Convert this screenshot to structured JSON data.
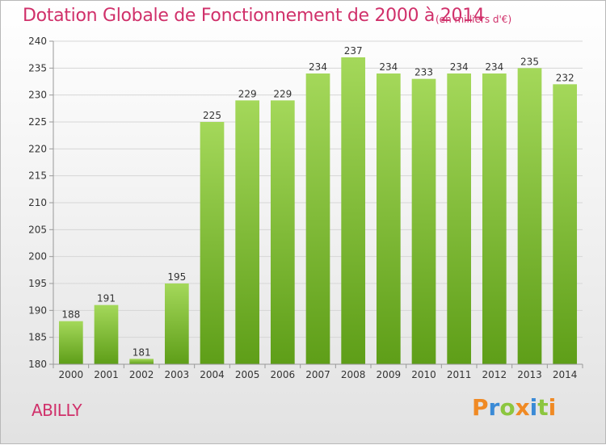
{
  "title": "Dotation Globale de Fonctionnement de 2000 à 2014",
  "unit": "(en milliers d'€)",
  "commune": "ABILLY",
  "logo": {
    "letters": [
      "P",
      "r",
      "o",
      "x",
      "i",
      "t",
      "i"
    ],
    "colors": [
      "#f08a24",
      "#3a8ad6",
      "#8cc63f",
      "#f08a24",
      "#3a8ad6",
      "#8cc63f",
      "#f08a24"
    ]
  },
  "colors": {
    "bar_top": "#a4d85a",
    "bar_bottom": "#5e9e18",
    "text_accent": "#d0306a"
  },
  "chart_data": {
    "type": "bar",
    "categories": [
      "2000",
      "2001",
      "2002",
      "2003",
      "2004",
      "2005",
      "2006",
      "2007",
      "2008",
      "2009",
      "2010",
      "2011",
      "2012",
      "2013",
      "2014"
    ],
    "values": [
      188,
      191,
      181,
      195,
      225,
      229,
      229,
      234,
      237,
      234,
      233,
      234,
      234,
      235,
      232
    ],
    "ylim": [
      180,
      240
    ],
    "yticks": [
      180,
      185,
      190,
      195,
      200,
      205,
      210,
      215,
      220,
      225,
      230,
      235,
      240
    ],
    "grid": true
  }
}
